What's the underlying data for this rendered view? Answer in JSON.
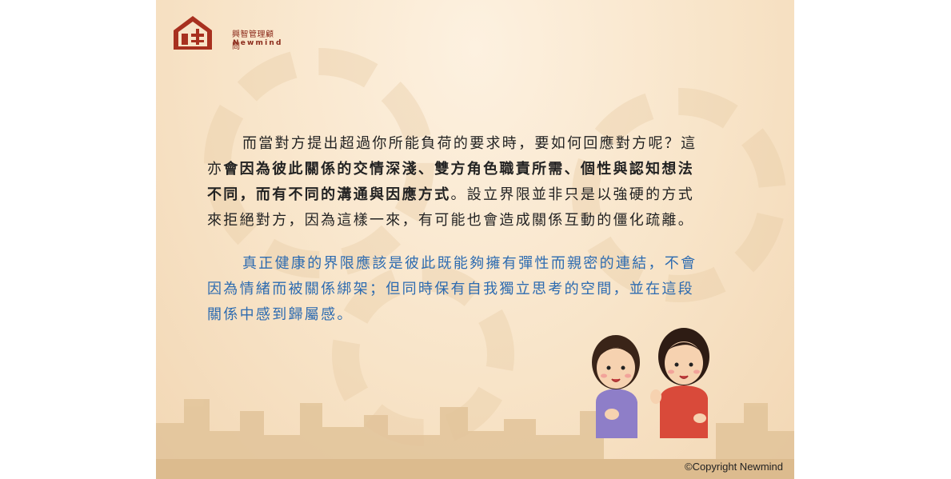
{
  "logo": {
    "name_cn": "興智管理顧問",
    "name_en": "Newmind"
  },
  "paragraph1": {
    "line1": "而當對方提出超過你所能負荷的要求時，要如何回應對方呢？這",
    "line2_a": "亦",
    "line2_b": "會因為彼此關係的交情深淺、雙方角色職責所需、個性與認知想法",
    "line3_a": "不同，而有不同的溝通與因應方式",
    "line3_b": "。設立界限並非只是以強硬的方式",
    "line4": "來拒絕對方，因為這樣一來，有可能也會造成關係互動的僵化疏離。"
  },
  "paragraph2": {
    "line1": "真正健康的界限應該是彼此既能夠擁有彈性而親密的連結，不會",
    "line2": "因為情緒而被關係綁架；但同時保有自我獨立思考的空間，並在這段",
    "line3": "關係中感到歸屬感。"
  },
  "copyright": "©Copyright Newmind",
  "colors": {
    "text": "#222222",
    "highlight_blue": "#2d6bb0",
    "brand_red": "#a8301f",
    "bg": "#f8e4c8"
  }
}
